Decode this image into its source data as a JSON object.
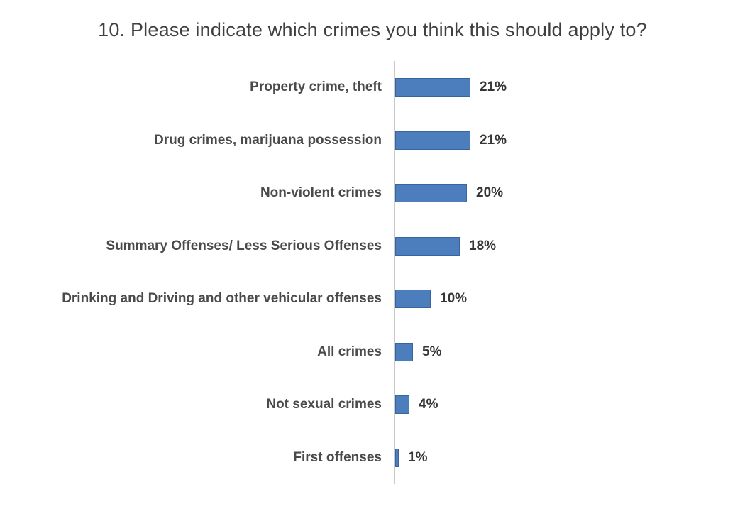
{
  "chart_data": {
    "type": "bar",
    "orientation": "horizontal",
    "title": "10. Please indicate which crimes you think this should apply to?",
    "categories": [
      "Property crime, theft",
      "Drug crimes, marijuana possession",
      "Non-violent crimes",
      "Summary Offenses/ Less Serious Offenses",
      "Drinking and Driving and other vehicular offenses",
      "All crimes",
      "Not sexual crimes",
      "First offenses"
    ],
    "values": [
      21,
      21,
      20,
      18,
      10,
      5,
      4,
      1
    ],
    "value_labels": [
      "21%",
      "21%",
      "20%",
      "18%",
      "10%",
      "5%",
      "4%",
      "1%"
    ],
    "xlabel": "",
    "ylabel": "",
    "xlim": [
      0,
      25
    ],
    "grid": false,
    "legend_position": "none",
    "data_labels": "outside-end",
    "colors": {
      "bar_fill": "#4c7ebd",
      "bar_border": "#3a64a0",
      "axis_line": "#c9c9c9",
      "title_text": "#3f3f3f",
      "category_text": "#4a4a4a",
      "value_text": "#363636",
      "background": "#ffffff"
    }
  }
}
